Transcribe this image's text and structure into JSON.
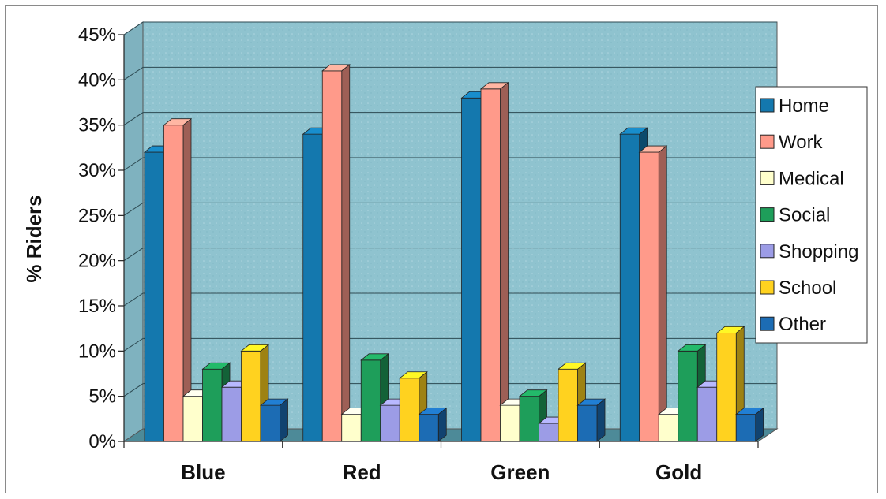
{
  "chart_data": {
    "type": "bar",
    "title": "",
    "xlabel": "",
    "ylabel": "% Riders",
    "ylim": [
      0,
      45
    ],
    "ytick_labels": [
      "0%",
      "5%",
      "10%",
      "15%",
      "20%",
      "25%",
      "30%",
      "35%",
      "40%",
      "45%"
    ],
    "categories": [
      "Blue",
      "Red",
      "Green",
      "Gold"
    ],
    "grid": true,
    "legend_position": "right",
    "series": [
      {
        "name": "Home",
        "color": "#1478AE",
        "values": [
          32,
          34,
          38,
          34
        ]
      },
      {
        "name": "Work",
        "color": "#FF9A8A",
        "values": [
          35,
          41,
          39,
          32
        ]
      },
      {
        "name": "Medical",
        "color": "#FFFFCC",
        "values": [
          5,
          3,
          4,
          3
        ]
      },
      {
        "name": "Social",
        "color": "#1E9E5A",
        "values": [
          8,
          9,
          5,
          10
        ]
      },
      {
        "name": "Shopping",
        "color": "#9C9CE6",
        "values": [
          6,
          4,
          2,
          6
        ]
      },
      {
        "name": "School",
        "color": "#FFD21F",
        "values": [
          10,
          7,
          8,
          12
        ]
      },
      {
        "name": "Other",
        "color": "#1C6CB4",
        "values": [
          4,
          3,
          4,
          3
        ]
      }
    ],
    "plot_background": "#8FC3CF"
  }
}
